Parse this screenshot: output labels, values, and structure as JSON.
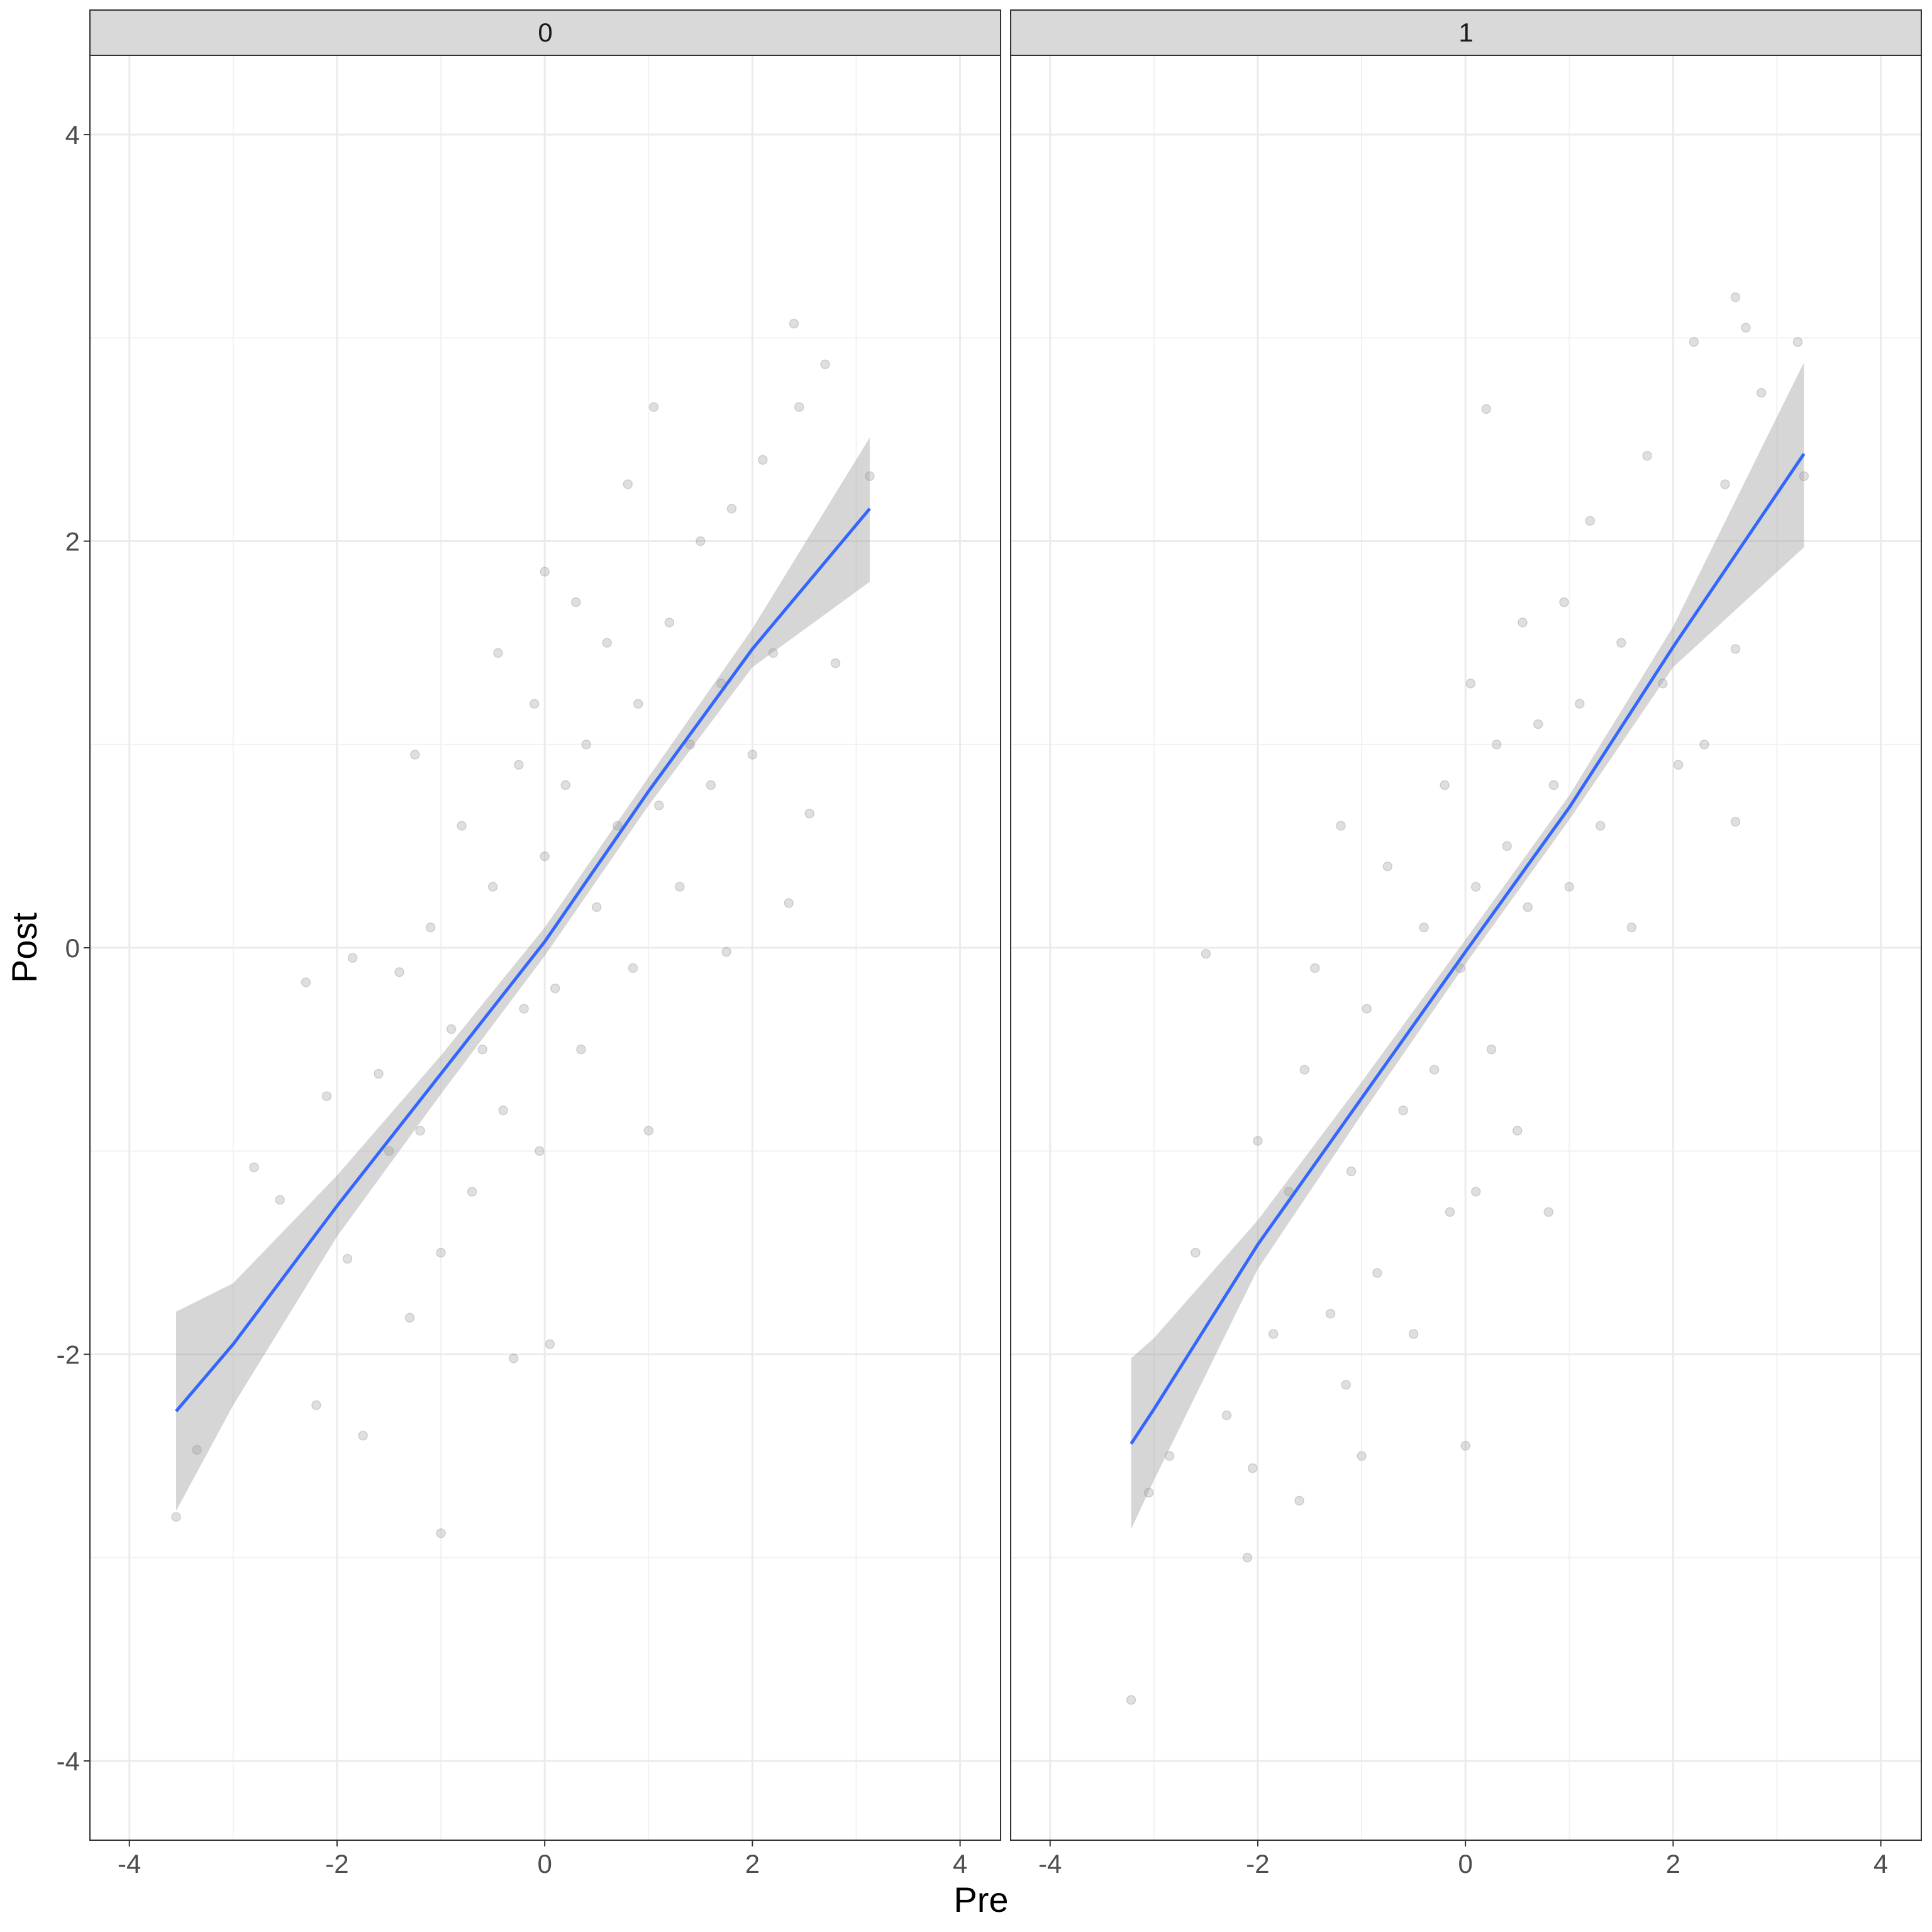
{
  "x_label": "Pre",
  "y_label": "Post",
  "chart_data": [
    {
      "type": "scatter",
      "facet": "0",
      "x": [
        -3.55,
        -3.35,
        -2.8,
        -2.55,
        -2.3,
        -2.2,
        -2.1,
        -1.9,
        -1.85,
        -1.75,
        -1.6,
        -1.5,
        -1.4,
        -1.3,
        -1.25,
        -1.2,
        -1.1,
        -1.0,
        -1.0,
        -0.9,
        -0.8,
        -0.7,
        -0.6,
        -0.5,
        -0.45,
        -0.4,
        -0.3,
        -0.25,
        -0.2,
        -0.1,
        -0.05,
        0.0,
        0.0,
        0.05,
        0.1,
        0.2,
        0.3,
        0.35,
        0.4,
        0.5,
        0.6,
        0.7,
        0.8,
        0.85,
        0.9,
        1.0,
        1.05,
        1.1,
        1.2,
        1.3,
        1.4,
        1.5,
        1.6,
        1.7,
        1.75,
        1.8,
        2.0,
        2.1,
        2.2,
        2.4,
        2.45,
        2.55,
        2.7,
        2.8,
        3.13,
        2.35
      ],
      "y": [
        -2.8,
        -2.47,
        -1.08,
        -1.24,
        -0.17,
        -2.25,
        -0.73,
        -1.53,
        -0.05,
        -2.4,
        -0.62,
        -1.0,
        -0.12,
        -1.82,
        0.95,
        -0.9,
        0.1,
        -2.88,
        -1.5,
        -0.4,
        0.6,
        -1.2,
        -0.5,
        0.3,
        1.45,
        -0.8,
        -2.02,
        0.9,
        -0.3,
        1.2,
        -1.0,
        0.45,
        1.85,
        -1.95,
        -0.2,
        0.8,
        1.7,
        -0.5,
        1.0,
        0.2,
        1.5,
        0.6,
        2.28,
        -0.1,
        1.2,
        -0.9,
        2.66,
        0.7,
        1.6,
        0.3,
        1.0,
        2.0,
        0.8,
        1.3,
        -0.02,
        2.16,
        0.95,
        2.4,
        1.45,
        3.07,
        2.66,
        0.66,
        2.87,
        1.4,
        2.32,
        0.22
      ],
      "smooth": {
        "x": [
          -3.55,
          -3,
          -2,
          -1,
          0,
          1,
          2,
          3.13
        ],
        "y": [
          -2.28,
          -1.95,
          -1.27,
          -0.62,
          0.03,
          0.77,
          1.47,
          2.16
        ],
        "lower": [
          -2.77,
          -2.25,
          -1.42,
          -0.72,
          -0.04,
          0.7,
          1.38,
          1.8
        ],
        "upper": [
          -1.79,
          -1.65,
          -1.12,
          -0.53,
          0.1,
          0.84,
          1.57,
          2.51
        ],
        "color": "#3366ff"
      },
      "color": "#808080",
      "xlim": [
        -4.38,
        4.39
      ],
      "ylim": [
        -4.39,
        4.39
      ],
      "xticks": [
        -4,
        -2,
        0,
        2,
        4
      ],
      "yticks": [
        -4,
        -2,
        0,
        2,
        4
      ],
      "xminor": [
        -3,
        -1,
        1,
        3
      ],
      "yminor": [
        -3,
        -1,
        1,
        3
      ],
      "grid": true
    },
    {
      "type": "scatter",
      "facet": "1",
      "x": [
        -3.22,
        -3.05,
        -2.85,
        -2.6,
        -2.5,
        -2.3,
        -2.1,
        -2.05,
        -2.0,
        -1.85,
        -1.7,
        -1.6,
        -1.55,
        -1.45,
        -1.3,
        -1.2,
        -1.1,
        -1.0,
        -0.95,
        -0.85,
        -0.75,
        -0.6,
        -0.5,
        -0.4,
        -0.3,
        -0.2,
        -0.15,
        -0.05,
        0.0,
        0.05,
        0.1,
        0.2,
        0.25,
        0.3,
        0.4,
        0.5,
        0.55,
        0.6,
        0.7,
        0.8,
        0.85,
        0.95,
        1.0,
        1.1,
        1.2,
        1.3,
        1.5,
        1.6,
        1.75,
        1.9,
        2.05,
        2.2,
        2.3,
        2.5,
        2.6,
        2.6,
        2.6,
        2.7,
        2.85,
        3.2,
        3.26,
        0.1,
        -1.15
      ],
      "y": [
        -3.7,
        -2.68,
        -2.5,
        -1.5,
        -0.03,
        -2.3,
        -3.0,
        -2.56,
        -0.95,
        -1.9,
        -1.2,
        -2.72,
        -0.6,
        -0.1,
        -1.8,
        0.6,
        -1.1,
        -2.5,
        -0.3,
        -1.6,
        0.4,
        -0.8,
        -1.9,
        0.1,
        -0.6,
        0.8,
        -1.3,
        -0.1,
        -2.45,
        1.3,
        0.3,
        2.65,
        -0.5,
        1.0,
        0.5,
        -0.9,
        1.6,
        0.2,
        1.1,
        -1.3,
        0.8,
        1.7,
        0.3,
        1.2,
        2.1,
        0.6,
        1.5,
        0.1,
        2.42,
        1.3,
        0.9,
        2.98,
        1.0,
        2.28,
        3.2,
        1.47,
        0.62,
        3.05,
        2.73,
        2.98,
        2.32,
        -1.2,
        -2.15
      ],
      "smooth": {
        "x": [
          -3.22,
          -3,
          -2,
          -1,
          0,
          1,
          2,
          3.26
        ],
        "y": [
          -2.44,
          -2.27,
          -1.46,
          -0.74,
          -0.02,
          0.69,
          1.48,
          2.43
        ],
        "lower": [
          -2.86,
          -2.62,
          -1.58,
          -0.82,
          -0.08,
          0.63,
          1.38,
          1.97
        ],
        "upper": [
          -2.02,
          -1.92,
          -1.34,
          -0.66,
          0.04,
          0.75,
          1.58,
          2.88
        ],
        "color": "#3366ff"
      },
      "color": "#808080",
      "xlim": [
        -4.38,
        4.39
      ],
      "ylim": [
        -4.39,
        4.39
      ],
      "xticks": [
        -4,
        -2,
        0,
        2,
        4
      ],
      "yticks": [
        -4,
        -2,
        0,
        2,
        4
      ],
      "xminor": [
        -3,
        -1,
        1,
        3
      ],
      "yminor": [
        -3,
        -1,
        1,
        3
      ],
      "grid": true
    }
  ]
}
